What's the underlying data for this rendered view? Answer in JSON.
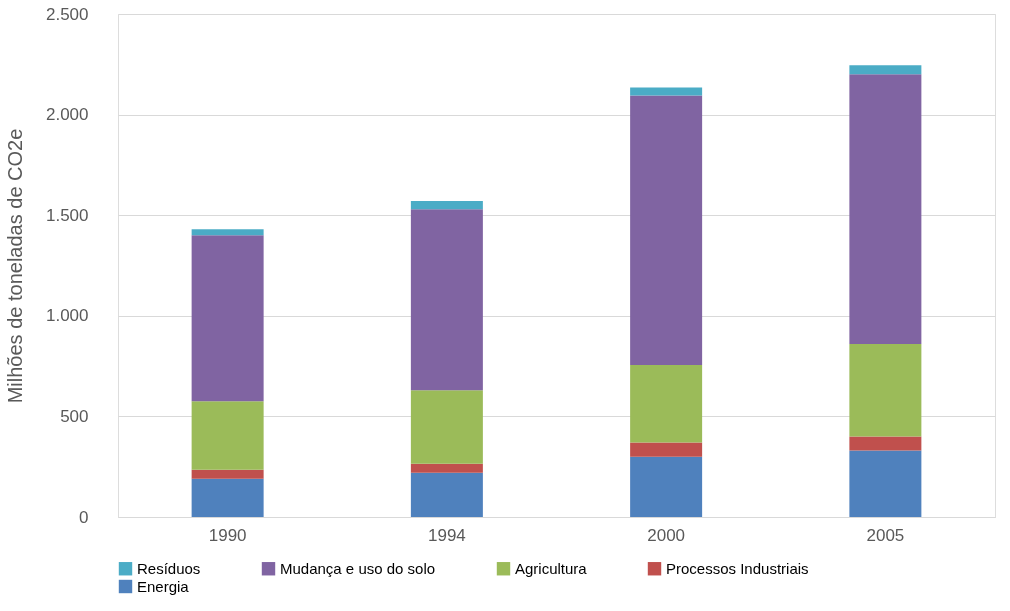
{
  "chart_data": {
    "type": "bar",
    "stacked": true,
    "ylabel": "Milhões de toneladas de CO2e",
    "categories": [
      "1990",
      "1994",
      "2000",
      "2005"
    ],
    "series": [
      {
        "name": "Energia",
        "color": "#4f81bd",
        "values": [
          190,
          220,
          300,
          330
        ]
      },
      {
        "name": "Processos Industriais",
        "color": "#c0504d",
        "values": [
          45,
          45,
          70,
          70
        ]
      },
      {
        "name": "Agricultura",
        "color": "#9bbb59",
        "values": [
          340,
          365,
          385,
          460
        ]
      },
      {
        "name": "Mudança e uso do solo",
        "color": "#8064a2",
        "values": [
          825,
          900,
          1340,
          1340
        ]
      },
      {
        "name": "Resíduos",
        "color": "#4bacc6",
        "values": [
          30,
          40,
          40,
          45
        ]
      }
    ],
    "ylim": [
      0,
      2500
    ],
    "yticks": [
      0,
      500,
      {
        "value": 1000,
        "label": "1.000"
      },
      {
        "value": 1500,
        "label": "1.500"
      },
      {
        "value": 2000,
        "label": "2.000"
      },
      {
        "value": 2500,
        "label": "2.500"
      }
    ],
    "grid": "y",
    "legend": "bottom"
  }
}
